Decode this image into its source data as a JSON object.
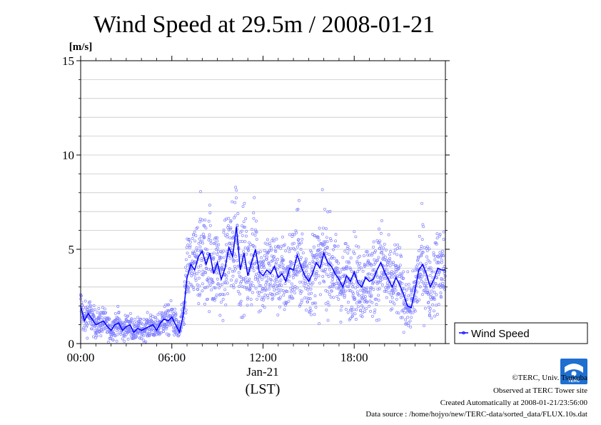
{
  "chart_data": {
    "type": "scatter",
    "title": "Wind Speed at 29.5m / 2008-01-21",
    "ylabel": "[m/s]",
    "xlabel": "(LST)",
    "date_label": "Jan-21",
    "ylim": [
      0,
      15
    ],
    "xlim_hours": [
      0,
      24
    ],
    "y_ticks": [
      0,
      5,
      10,
      15
    ],
    "y_tick_labels": [
      "0",
      "5",
      "10",
      "15"
    ],
    "x_ticks_hours": [
      0,
      6,
      12,
      18
    ],
    "x_tick_labels": [
      "00:00",
      "06:00",
      "12:00",
      "18:00"
    ],
    "grid": true,
    "legend": {
      "placement": "right",
      "entries": [
        "Wind Speed"
      ]
    },
    "colors": {
      "raw": "#8080ff",
      "mean": "#0000ff"
    },
    "series": [
      {
        "name": "Wind Speed",
        "kind": "10-minute mean line",
        "x_hours": [
          0.0,
          0.25,
          0.5,
          0.75,
          1.0,
          1.25,
          1.5,
          1.75,
          2.0,
          2.25,
          2.5,
          2.75,
          3.0,
          3.25,
          3.5,
          3.75,
          4.0,
          4.25,
          4.5,
          4.75,
          5.0,
          5.25,
          5.5,
          5.75,
          6.0,
          6.25,
          6.5,
          6.75,
          7.0,
          7.25,
          7.5,
          7.75,
          8.0,
          8.25,
          8.5,
          8.75,
          9.0,
          9.25,
          9.5,
          9.75,
          10.0,
          10.25,
          10.5,
          10.75,
          11.0,
          11.25,
          11.5,
          11.75,
          12.0,
          12.25,
          12.5,
          12.75,
          13.0,
          13.25,
          13.5,
          13.75,
          14.0,
          14.25,
          14.5,
          14.75,
          15.0,
          15.25,
          15.5,
          15.75,
          16.0,
          16.25,
          16.5,
          16.75,
          17.0,
          17.25,
          17.5,
          17.75,
          18.0,
          18.25,
          18.5,
          18.75,
          19.0,
          19.25,
          19.5,
          19.75,
          20.0,
          20.25,
          20.5,
          20.75,
          21.0,
          21.25,
          21.5,
          21.75,
          22.0,
          22.25,
          22.5,
          22.75,
          23.0,
          23.25,
          23.5,
          23.75
        ],
        "values": [
          2.0,
          1.2,
          1.6,
          1.3,
          1.0,
          1.1,
          1.2,
          0.9,
          0.7,
          1.0,
          1.1,
          0.7,
          0.9,
          1.0,
          0.6,
          0.8,
          0.7,
          0.8,
          0.9,
          1.0,
          0.7,
          1.1,
          1.3,
          1.2,
          1.4,
          1.0,
          0.6,
          1.5,
          3.5,
          4.2,
          3.9,
          4.6,
          4.9,
          4.2,
          4.8,
          3.7,
          4.3,
          3.4,
          4.0,
          5.1,
          4.6,
          6.2,
          3.9,
          4.8,
          3.6,
          4.3,
          5.0,
          3.8,
          3.6,
          3.9,
          3.7,
          4.1,
          3.5,
          3.7,
          3.3,
          4.0,
          3.9,
          4.7,
          4.1,
          3.6,
          3.3,
          3.7,
          4.3,
          4.0,
          4.8,
          4.3,
          4.1,
          3.7,
          3.4,
          3.0,
          3.6,
          3.3,
          3.8,
          3.2,
          3.0,
          3.5,
          3.3,
          3.4,
          3.9,
          4.3,
          3.8,
          3.4,
          3.0,
          3.5,
          3.1,
          2.6,
          2.0,
          1.9,
          2.8,
          3.9,
          4.2,
          3.7,
          3.0,
          3.4,
          4.0,
          3.9
        ]
      }
    ]
  },
  "legend_label": "Wind Speed",
  "footer": {
    "copyright": "©TERC, Univ. Tsukuba",
    "observed": "Observed at TERC Tower site",
    "created": "Created Automatically at 2008-01-21/23:56:00",
    "source": "Data source : /home/hojyo/new/TERC-data/sorted_data/FLUX.10s.dat"
  },
  "logo_text": "TERC"
}
